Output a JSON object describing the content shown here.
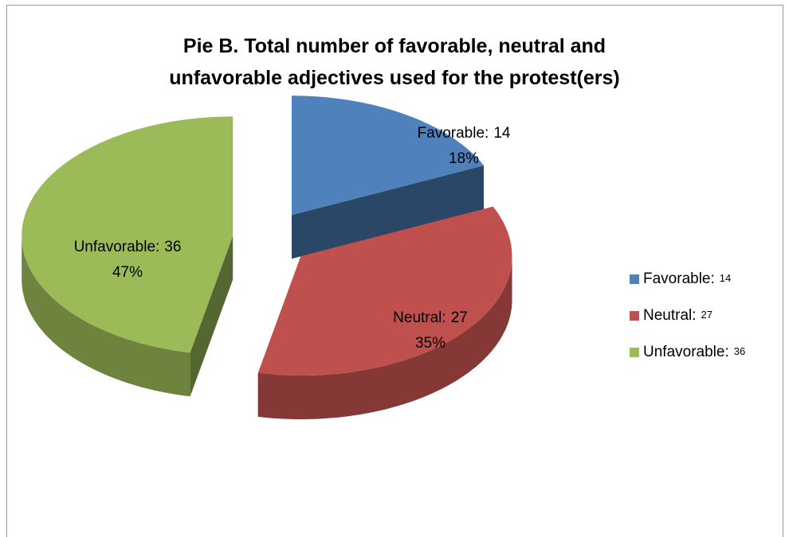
{
  "chart_data": {
    "type": "pie",
    "title": "Pie B. Total number of favorable, neutral and unfavorable adjectives used for the protest(ers)",
    "categories": [
      "Favorable:",
      "Neutral:",
      "Unfavorable:"
    ],
    "values": [
      14,
      27,
      36
    ],
    "percent_labels": [
      "18%",
      "35%",
      "47%"
    ],
    "colors": [
      "#4f81bd",
      "#c0504d",
      "#9bbb59"
    ],
    "legend": "right"
  }
}
